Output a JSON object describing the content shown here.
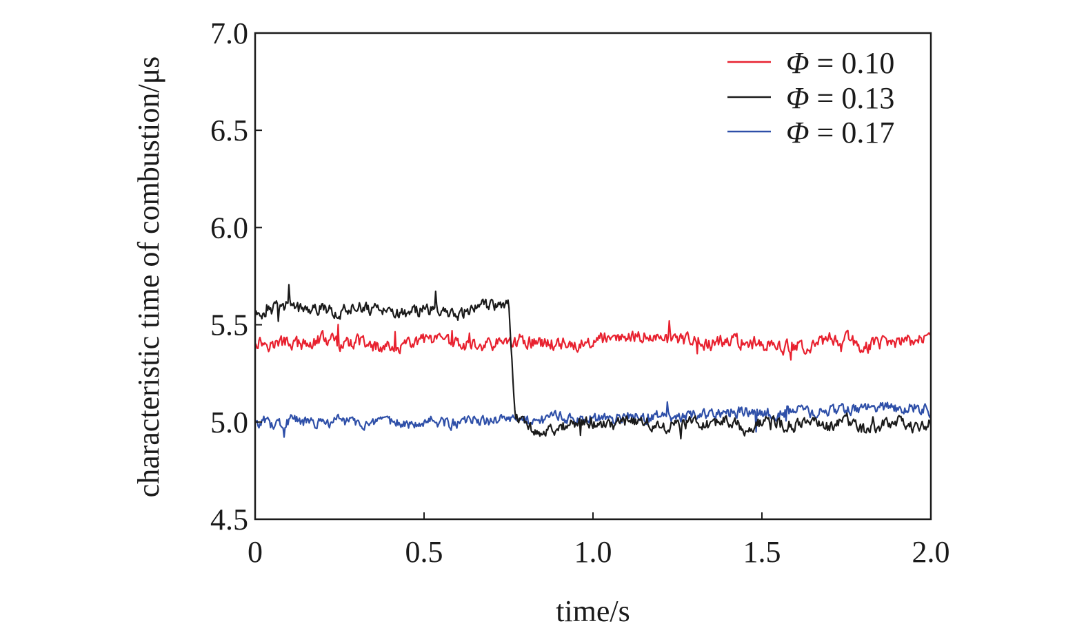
{
  "chart_data": {
    "type": "line",
    "title": "",
    "xlabel": "time/s",
    "ylabel": "characteristic time of combustion/μs",
    "xlim": [
      0,
      2.0
    ],
    "ylim": [
      4.5,
      7.0
    ],
    "x_ticks": [
      0,
      0.5,
      1.0,
      1.5,
      2.0
    ],
    "x_tick_labels": [
      "0",
      "0.5",
      "1.0",
      "1.5",
      "2.0"
    ],
    "y_ticks": [
      4.5,
      5.0,
      5.5,
      6.0,
      6.5,
      7.0
    ],
    "y_tick_labels": [
      "4.5",
      "5.0",
      "5.5",
      "6.0",
      "6.5",
      "7.0"
    ],
    "grid": false,
    "legend_position": "top-right",
    "series": [
      {
        "name": "Φ = 0.10",
        "legend_symbol": "Φ",
        "legend_value": "= 0.10",
        "color": "#e8212f",
        "x": [
          0,
          0.05,
          0.1,
          0.15,
          0.2,
          0.25,
          0.3,
          0.35,
          0.4,
          0.45,
          0.5,
          0.55,
          0.6,
          0.65,
          0.7,
          0.75,
          0.8,
          0.85,
          0.9,
          0.95,
          1.0,
          1.05,
          1.1,
          1.15,
          1.2,
          1.25,
          1.3,
          1.35,
          1.4,
          1.45,
          1.5,
          1.55,
          1.6,
          1.65,
          1.7,
          1.75,
          1.8,
          1.85,
          1.9,
          1.95,
          2.0
        ],
        "y": [
          5.42,
          5.4,
          5.41,
          5.39,
          5.43,
          5.4,
          5.41,
          5.38,
          5.4,
          5.39,
          5.42,
          5.41,
          5.4,
          5.39,
          5.4,
          5.41,
          5.42,
          5.4,
          5.41,
          5.4,
          5.42,
          5.43,
          5.42,
          5.44,
          5.43,
          5.42,
          5.41,
          5.4,
          5.42,
          5.41,
          5.4,
          5.38,
          5.39,
          5.4,
          5.42,
          5.43,
          5.39,
          5.4,
          5.41,
          5.42,
          5.45
        ]
      },
      {
        "name": "Φ = 0.13",
        "legend_symbol": "Φ",
        "legend_value": "= 0.13",
        "color": "#1a1a1a",
        "x": [
          0,
          0.05,
          0.1,
          0.15,
          0.2,
          0.25,
          0.3,
          0.35,
          0.4,
          0.45,
          0.5,
          0.55,
          0.6,
          0.65,
          0.7,
          0.75,
          0.77,
          0.8,
          0.85,
          0.9,
          0.95,
          1.0,
          1.05,
          1.1,
          1.15,
          1.2,
          1.25,
          1.3,
          1.35,
          1.4,
          1.45,
          1.5,
          1.55,
          1.6,
          1.65,
          1.7,
          1.75,
          1.8,
          1.85,
          1.9,
          1.95,
          2.0
        ],
        "y": [
          5.55,
          5.58,
          5.6,
          5.57,
          5.59,
          5.56,
          5.6,
          5.58,
          5.57,
          5.56,
          5.58,
          5.57,
          5.55,
          5.59,
          5.6,
          5.62,
          5.05,
          4.98,
          4.95,
          4.97,
          4.99,
          5.0,
          4.98,
          5.01,
          5.0,
          4.97,
          4.99,
          5.0,
          4.98,
          5.01,
          4.96,
          5.0,
          4.99,
          4.98,
          5.0,
          4.97,
          5.01,
          4.96,
          4.98,
          5.0,
          4.97,
          4.99
        ]
      },
      {
        "name": "Φ = 0.17",
        "legend_symbol": "Φ",
        "legend_value": "= 0.17",
        "color": "#2e4fa8",
        "x": [
          0,
          0.05,
          0.1,
          0.15,
          0.2,
          0.25,
          0.3,
          0.35,
          0.4,
          0.45,
          0.5,
          0.55,
          0.6,
          0.65,
          0.7,
          0.75,
          0.8,
          0.85,
          0.9,
          0.95,
          1.0,
          1.05,
          1.1,
          1.15,
          1.2,
          1.25,
          1.3,
          1.35,
          1.4,
          1.45,
          1.5,
          1.55,
          1.6,
          1.65,
          1.7,
          1.75,
          1.8,
          1.85,
          1.9,
          1.95,
          2.0
        ],
        "y": [
          5.0,
          4.98,
          5.01,
          5.0,
          4.99,
          5.01,
          5.0,
          4.98,
          5.0,
          4.99,
          5.01,
          5.0,
          4.99,
          5.01,
          5.0,
          5.02,
          5.0,
          5.01,
          5.03,
          5.0,
          5.02,
          5.01,
          5.03,
          5.02,
          5.04,
          5.02,
          5.03,
          5.04,
          5.05,
          5.06,
          5.05,
          5.04,
          5.06,
          5.05,
          5.06,
          5.07,
          5.06,
          5.08,
          5.07,
          5.08,
          5.06
        ]
      }
    ]
  }
}
